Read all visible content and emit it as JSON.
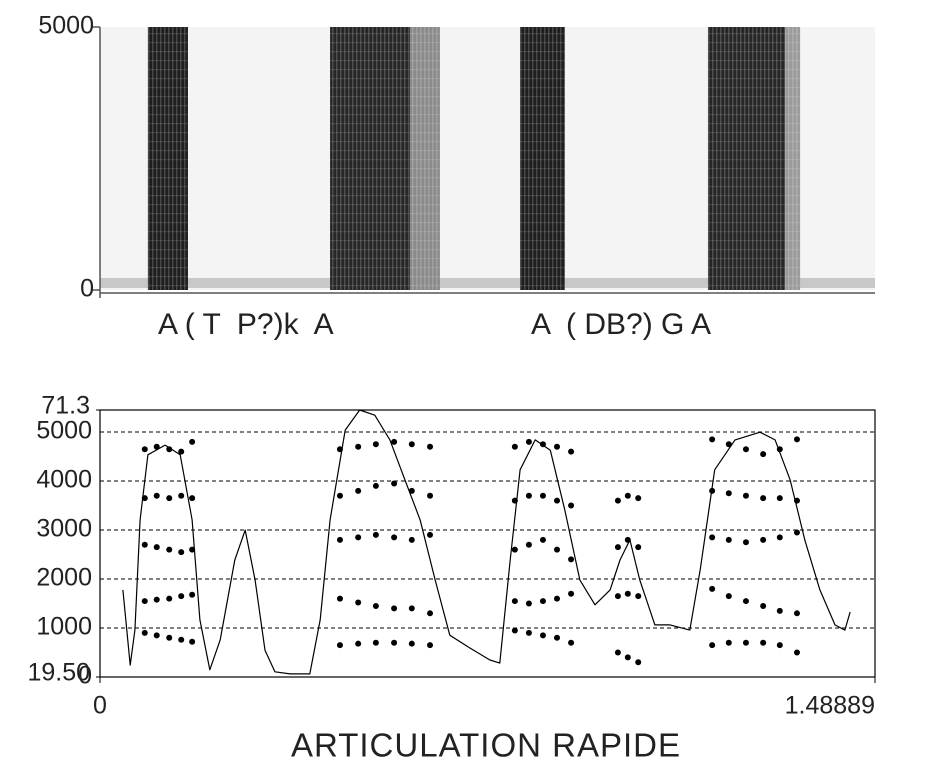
{
  "chart_data": [
    {
      "type": "spectrogram",
      "annotations": [
        "A ( T  P?)k  A",
        "A  ( DB?) G A"
      ],
      "xlim": [
        0,
        1.48889
      ],
      "ylim": [
        0,
        5000
      ],
      "yticks": [
        0,
        5000
      ],
      "bands": [
        {
          "x": [
            0.092,
            0.169
          ],
          "color": "#1e1e1e"
        },
        {
          "x": [
            0.442,
            0.596
          ],
          "color": "#262626"
        },
        {
          "x": [
            0.596,
            0.653
          ],
          "color": "#8a8a8a"
        },
        {
          "x": [
            0.807,
            0.893
          ],
          "color": "#1e1e1e"
        },
        {
          "x": [
            1.168,
            1.316
          ],
          "color": "#262626"
        },
        {
          "x": [
            1.316,
            1.345
          ],
          "color": "#9a9a9a"
        }
      ]
    },
    {
      "type": "scatter",
      "xlabel": "ARTICULATION RAPIDE",
      "xlim": [
        0,
        1.48889
      ],
      "xticks": [
        0,
        1.48889
      ],
      "ylim": [
        0,
        5450
      ],
      "yticks": [
        0,
        1000,
        2000,
        3000,
        4000,
        5000
      ],
      "y2lim": [
        19.5,
        71.3
      ],
      "y2ticks": [
        {
          "value": 19.5,
          "label": "19.50"
        },
        71.3
      ],
      "grid": true,
      "series": [
        {
          "color": "#000000",
          "x": [
            0.086,
            0.109,
            0.133,
            0.156,
            0.177,
            0.461,
            0.496,
            0.53,
            0.565,
            0.599,
            0.634,
            0.797,
            0.824,
            0.851,
            0.878,
            0.905,
            0.995,
            1.014,
            1.034,
            1.176,
            1.208,
            1.241,
            1.274,
            1.306,
            1.339
          ],
          "values": [
            900,
            850,
            800,
            760,
            720,
            650,
            680,
            700,
            700,
            680,
            650,
            950,
            900,
            850,
            800,
            700,
            500,
            400,
            300,
            650,
            700,
            700,
            700,
            650,
            500
          ]
        },
        {
          "color": "#000000",
          "x": [
            0.086,
            0.109,
            0.133,
            0.156,
            0.177,
            0.461,
            0.496,
            0.53,
            0.565,
            0.599,
            0.634,
            0.797,
            0.824,
            0.851,
            0.878,
            0.905,
            0.995,
            1.014,
            1.034,
            1.176,
            1.208,
            1.241,
            1.274,
            1.306,
            1.339
          ],
          "values": [
            1550,
            1580,
            1600,
            1650,
            1680,
            1600,
            1520,
            1450,
            1400,
            1400,
            1300,
            1550,
            1500,
            1550,
            1600,
            1700,
            1650,
            1700,
            1650,
            1800,
            1650,
            1550,
            1450,
            1350,
            1300
          ]
        },
        {
          "color": "#000000",
          "x": [
            0.086,
            0.109,
            0.133,
            0.156,
            0.177,
            0.461,
            0.496,
            0.53,
            0.565,
            0.599,
            0.634,
            0.797,
            0.824,
            0.851,
            0.878,
            0.905,
            0.995,
            1.014,
            1.034,
            1.176,
            1.208,
            1.241,
            1.274,
            1.306,
            1.339
          ],
          "values": [
            2700,
            2650,
            2600,
            2550,
            2600,
            2800,
            2850,
            2900,
            2850,
            2800,
            2900,
            2600,
            2700,
            2800,
            2600,
            2400,
            2650,
            2800,
            2650,
            2850,
            2800,
            2750,
            2800,
            2850,
            2950
          ]
        },
        {
          "color": "#000000",
          "x": [
            0.086,
            0.109,
            0.133,
            0.156,
            0.177,
            0.461,
            0.496,
            0.53,
            0.565,
            0.599,
            0.634,
            0.797,
            0.824,
            0.851,
            0.878,
            0.905,
            0.995,
            1.014,
            1.034,
            1.176,
            1.208,
            1.241,
            1.274,
            1.306,
            1.339
          ],
          "values": [
            3650,
            3700,
            3650,
            3700,
            3650,
            3700,
            3800,
            3900,
            3950,
            3800,
            3700,
            3600,
            3700,
            3700,
            3600,
            3500,
            3600,
            3700,
            3650,
            3800,
            3750,
            3700,
            3650,
            3650,
            3600
          ]
        },
        {
          "color": "#000000",
          "x": [
            0.086,
            0.109,
            0.133,
            0.156,
            0.177,
            0.461,
            0.496,
            0.53,
            0.565,
            0.599,
            0.634,
            0.797,
            0.824,
            0.851,
            0.878,
            0.905,
            1.176,
            1.208,
            1.241,
            1.274,
            1.306,
            1.339
          ],
          "values": [
            4650,
            4700,
            4650,
            4600,
            4800,
            4650,
            4700,
            4750,
            4800,
            4750,
            4700,
            4700,
            4800,
            4750,
            4700,
            4600,
            4850,
            4750,
            4650,
            4550,
            4650,
            4850
          ]
        },
        {
          "type": "line",
          "axis": "y2",
          "color": "#000000",
          "x": [
            0.044,
            0.058,
            0.067,
            0.077,
            0.092,
            0.125,
            0.154,
            0.177,
            0.192,
            0.211,
            0.231,
            0.259,
            0.279,
            0.298,
            0.317,
            0.336,
            0.365,
            0.403,
            0.423,
            0.442,
            0.471,
            0.499,
            0.528,
            0.557,
            0.586,
            0.615,
            0.644,
            0.672,
            0.711,
            0.749,
            0.768,
            0.788,
            0.807,
            0.836,
            0.865,
            0.893,
            0.922,
            0.951,
            0.98,
            0.999,
            1.018,
            1.037,
            1.066,
            1.095,
            1.133,
            1.153,
            1.181,
            1.22,
            1.268,
            1.297,
            1.326,
            1.354,
            1.383,
            1.412,
            1.431,
            1.441
          ],
          "values": [
            36.4,
            21.8,
            28.6,
            50.0,
            62.6,
            64.5,
            62.6,
            50.0,
            30.6,
            20.9,
            26.7,
            42.2,
            48.0,
            38.3,
            24.7,
            20.5,
            20.1,
            20.1,
            30.6,
            50.0,
            67.4,
            71.3,
            70.3,
            65.5,
            57.7,
            50.0,
            38.3,
            27.6,
            25.1,
            22.8,
            22.2,
            42.2,
            59.7,
            65.5,
            63.5,
            51.9,
            38.3,
            33.5,
            36.4,
            42.2,
            46.1,
            38.3,
            29.6,
            29.6,
            28.6,
            40.3,
            59.7,
            65.5,
            67.0,
            65.5,
            57.7,
            46.1,
            36.4,
            29.6,
            28.6,
            32.1
          ]
        }
      ]
    }
  ]
}
